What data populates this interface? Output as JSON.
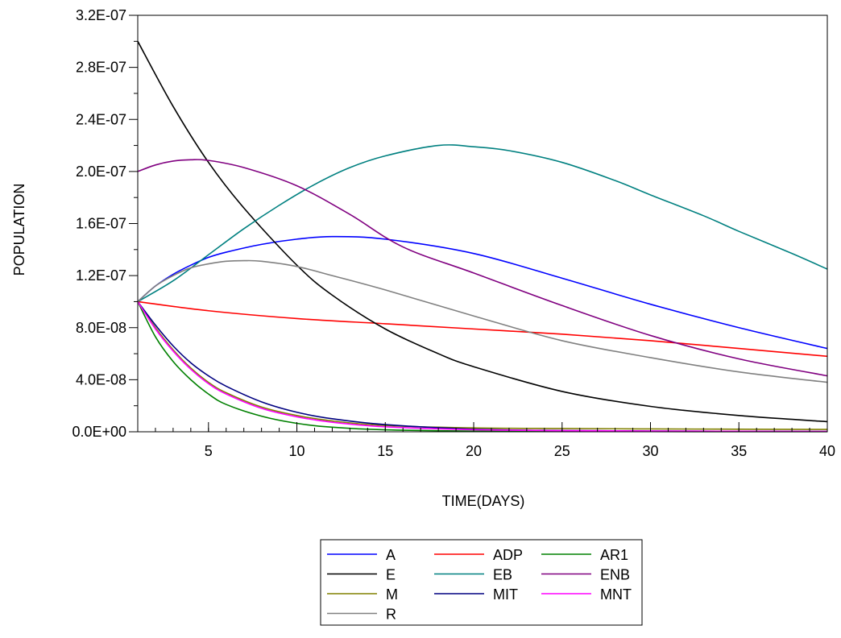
{
  "chart_data": {
    "type": "line",
    "title": "",
    "xlabel": "TIME(DAYS)",
    "ylabel": "POPULATION",
    "xlim": [
      1,
      40
    ],
    "ylim": [
      0,
      3.2e-07
    ],
    "x_ticks": [
      5,
      10,
      15,
      20,
      25,
      30,
      35,
      40
    ],
    "x_tick_labels": [
      "5",
      "10",
      "15",
      "20",
      "25",
      "30",
      "35",
      "40"
    ],
    "y_ticks": [
      0,
      4e-08,
      8e-08,
      1.2e-07,
      1.6e-07,
      2e-07,
      2.4e-07,
      2.8e-07,
      3.2e-07
    ],
    "y_tick_labels": [
      "0.0E+00",
      "4.0E-08",
      "8.0E-08",
      "1.2E-07",
      "1.6E-07",
      "2.0E-07",
      "2.4E-07",
      "2.8E-07",
      "3.2E-07"
    ],
    "grid": false,
    "legend_position": "bottom-center",
    "legend_columns": 3,
    "series": [
      {
        "name": "A",
        "color": "#0000ff",
        "x": [
          1,
          2,
          3,
          4,
          5,
          6,
          8,
          10,
          12,
          15,
          20,
          25,
          30,
          35,
          40
        ],
        "y": [
          1e-07,
          1.12e-07,
          1.21e-07,
          1.28e-07,
          1.34e-07,
          1.38e-07,
          1.44e-07,
          1.48e-07,
          1.5e-07,
          1.48e-07,
          1.37e-07,
          1.18e-07,
          9.8e-08,
          8e-08,
          6.4e-08
        ]
      },
      {
        "name": "ADP",
        "color": "#ff0000",
        "x": [
          1,
          5,
          10,
          15,
          20,
          25,
          30,
          35,
          40
        ],
        "y": [
          1e-07,
          9.3e-08,
          8.7e-08,
          8.3e-08,
          7.9e-08,
          7.5e-08,
          7e-08,
          6.4e-08,
          5.8e-08
        ]
      },
      {
        "name": "AR1",
        "color": "#008000",
        "x": [
          1,
          2,
          3,
          4,
          5,
          6,
          8,
          10,
          12,
          15,
          20,
          25,
          30,
          35,
          40
        ],
        "y": [
          1e-07,
          7.3e-08,
          5.4e-08,
          4e-08,
          2.9e-08,
          2.1e-08,
          1.2e-08,
          6.5e-09,
          3.5e-09,
          1.5e-09,
          5e-10,
          3e-10,
          2e-10,
          1e-10,
          1e-10
        ]
      },
      {
        "name": "E",
        "color": "#000000",
        "x": [
          1,
          3,
          5,
          7,
          10,
          12,
          15,
          18,
          20,
          25,
          30,
          35,
          40
        ],
        "y": [
          3e-07,
          2.5e-07,
          2.07e-07,
          1.72e-07,
          1.28e-07,
          1.05e-07,
          7.9e-08,
          6e-08,
          5e-08,
          3.1e-08,
          1.95e-08,
          1.25e-08,
          7.8e-09
        ]
      },
      {
        "name": "EB",
        "color": "#008080",
        "x": [
          1,
          3,
          5,
          7,
          9,
          11,
          13,
          15,
          18,
          20,
          22,
          25,
          28,
          30,
          33,
          35,
          38,
          40
        ],
        "y": [
          1e-07,
          1.16e-07,
          1.36e-07,
          1.56e-07,
          1.74e-07,
          1.9e-07,
          2.03e-07,
          2.12e-07,
          2.2e-07,
          2.19e-07,
          2.16e-07,
          2.07e-07,
          1.93e-07,
          1.82e-07,
          1.66e-07,
          1.54e-07,
          1.37e-07,
          1.25e-07
        ]
      },
      {
        "name": "ENB",
        "color": "#800080",
        "x": [
          1,
          2,
          3,
          4,
          5,
          7,
          10,
          13,
          16,
          20,
          25,
          30,
          35,
          40
        ],
        "y": [
          2e-07,
          2.05e-07,
          2.08e-07,
          2.09e-07,
          2.085e-07,
          2.03e-07,
          1.89e-07,
          1.67e-07,
          1.42e-07,
          1.22e-07,
          9.7e-08,
          7.4e-08,
          5.6e-08,
          4.3e-08
        ]
      },
      {
        "name": "M",
        "color": "#808000",
        "x": [
          1,
          2,
          3,
          4,
          5,
          6,
          8,
          10,
          12,
          15,
          20,
          25,
          30,
          35,
          40
        ],
        "y": [
          1e-07,
          8e-08,
          6.3e-08,
          4.9e-08,
          3.8e-08,
          3e-08,
          1.9e-08,
          1.25e-08,
          8.3e-09,
          4.8e-09,
          3e-09,
          2.5e-09,
          2.2e-09,
          2e-09,
          1.8e-09
        ]
      },
      {
        "name": "MIT",
        "color": "#000080",
        "x": [
          1,
          2,
          3,
          4,
          5,
          6,
          8,
          10,
          12,
          15,
          20,
          25,
          30,
          35,
          40
        ],
        "y": [
          1e-07,
          8.2e-08,
          6.6e-08,
          5.3e-08,
          4.3e-08,
          3.5e-08,
          2.3e-08,
          1.5e-08,
          1e-08,
          5.5e-09,
          2e-09,
          1e-09,
          6e-10,
          4e-10,
          3e-10
        ]
      },
      {
        "name": "MNT",
        "color": "#ff00ff",
        "x": [
          1,
          2,
          3,
          4,
          5,
          6,
          8,
          10,
          12,
          15,
          20,
          25,
          30,
          35,
          40
        ],
        "y": [
          1e-07,
          7.9e-08,
          6.2e-08,
          4.8e-08,
          3.7e-08,
          2.9e-08,
          1.8e-08,
          1.15e-08,
          7.3e-09,
          3.8e-09,
          1.6e-09,
          9e-10,
          6e-10,
          4e-10,
          3e-10
        ]
      },
      {
        "name": "R",
        "color": "#808080",
        "x": [
          1,
          2,
          3,
          4,
          5,
          6,
          7,
          8,
          10,
          12,
          15,
          20,
          25,
          30,
          35,
          40
        ],
        "y": [
          1e-07,
          1.12e-07,
          1.2e-07,
          1.26e-07,
          1.29e-07,
          1.31e-07,
          1.315e-07,
          1.31e-07,
          1.27e-07,
          1.2e-07,
          1.09e-07,
          8.9e-08,
          7e-08,
          5.7e-08,
          4.6e-08,
          3.8e-08
        ]
      }
    ]
  }
}
